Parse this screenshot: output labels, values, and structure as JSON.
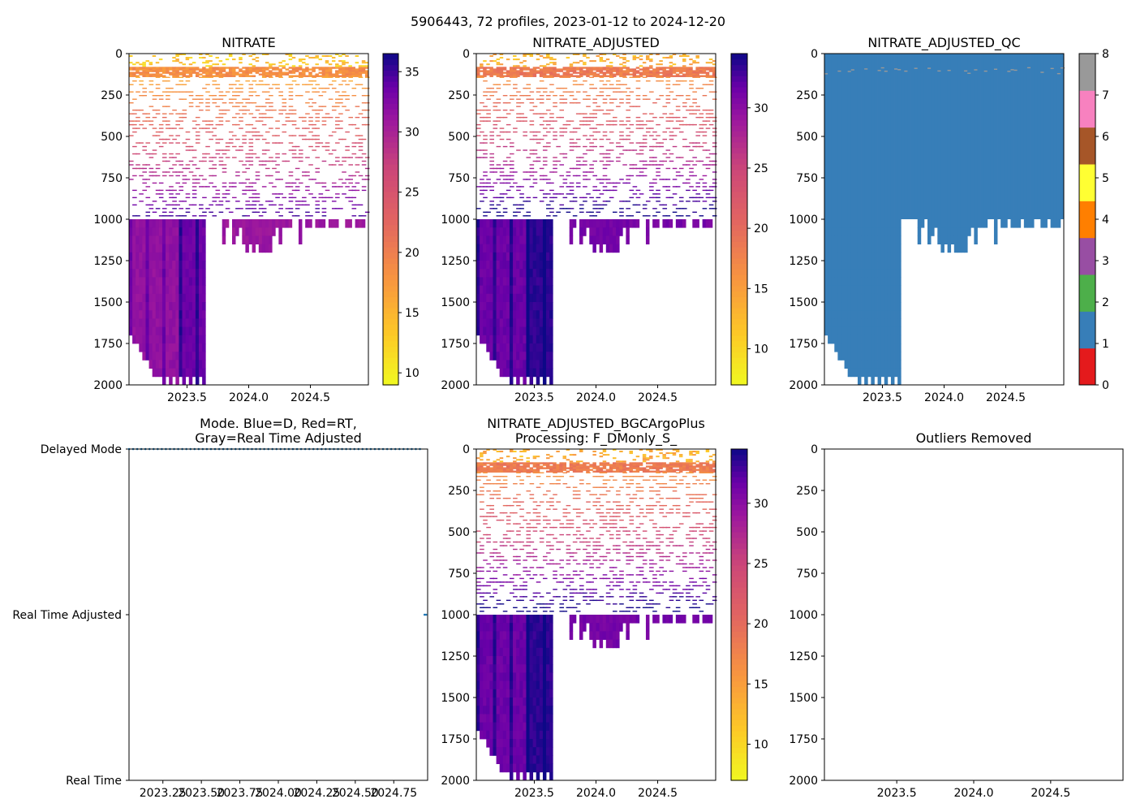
{
  "figure_title": "5906443, 72 profiles, 2023-01-12 to 2024-12-20",
  "chart_data": [
    {
      "type": "heatmap",
      "title": "NITRATE",
      "ylim": [
        2000,
        0
      ],
      "yticks": [
        0,
        250,
        500,
        750,
        1000,
        1250,
        1500,
        1750,
        2000
      ],
      "xlim": [
        2023.03,
        2024.97
      ],
      "xticks": [
        2023.5,
        2024.0,
        2024.5
      ],
      "xtick_labels": [
        "2023.5",
        "2024.0",
        "2024.5"
      ],
      "colormap": "plasma_r",
      "colorbar": {
        "range": [
          9,
          36.5
        ],
        "ticks": [
          10,
          15,
          20,
          25,
          30,
          35
        ]
      }
    },
    {
      "type": "heatmap",
      "title": "NITRATE_ADJUSTED",
      "ylim": [
        2000,
        0
      ],
      "yticks": [
        0,
        250,
        500,
        750,
        1000,
        1250,
        1500,
        1750,
        2000
      ],
      "xlim": [
        2023.03,
        2024.97
      ],
      "xticks": [
        2023.5,
        2024.0,
        2024.5
      ],
      "xtick_labels": [
        "2023.5",
        "2024.0",
        "2024.5"
      ],
      "colormap": "plasma_r",
      "colorbar": {
        "range": [
          7,
          34.5
        ],
        "ticks": [
          10,
          15,
          20,
          25,
          30
        ]
      }
    },
    {
      "type": "heatmap",
      "title": "NITRATE_ADJUSTED_QC",
      "ylim": [
        2000,
        0
      ],
      "yticks": [
        0,
        250,
        500,
        750,
        1000,
        1250,
        1500,
        1750,
        2000
      ],
      "xlim": [
        2023.03,
        2024.97
      ],
      "xticks": [
        2023.5,
        2024.0,
        2024.5
      ],
      "xtick_labels": [
        "2023.5",
        "2024.0",
        "2024.5"
      ],
      "dominant_flag": 1,
      "colorbar": {
        "range": [
          0,
          8
        ],
        "ticks": [
          0,
          1,
          2,
          3,
          4,
          5,
          6,
          7,
          8
        ],
        "colors": [
          "#e41a1c",
          "#377eb8",
          "#4daf4a",
          "#984ea3",
          "#ff7f00",
          "#ffff33",
          "#a65628",
          "#f781bf",
          "#999999"
        ]
      }
    },
    {
      "type": "scatter",
      "title": "Mode. Blue=D, Red=RT,\nGray=Real Time Adjusted",
      "title_lines": [
        "Mode. Blue=D, Red=RT,",
        "Gray=Real Time Adjusted"
      ],
      "ylim": [
        0,
        2
      ],
      "ytick_labels": [
        "Real Time",
        "Real Time Adjusted",
        "Delayed Mode"
      ],
      "xlim": [
        2023.03,
        2024.97
      ],
      "xticks": [
        2023.25,
        2023.5,
        2023.75,
        2024.0,
        2024.25,
        2024.5,
        2024.75
      ],
      "xtick_labels": [
        "2023.25",
        "2023.50",
        "2023.75",
        "2024.00",
        "2024.25",
        "2024.50",
        "2024.75"
      ],
      "series": [
        {
          "name": "Delayed Mode",
          "y": 2,
          "x_start": 2023.03,
          "x_end": 2024.92,
          "color": "#1f77b4"
        },
        {
          "name": "Real Time Adjusted",
          "y": 1,
          "x": [
            2024.95,
            2024.96
          ],
          "color": "#1f77b4"
        }
      ]
    },
    {
      "type": "heatmap",
      "title": "NITRATE_ADJUSTED_BGCArgoPlus\nProcessing: F_DMonly_S_",
      "title_lines": [
        "NITRATE_ADJUSTED_BGCArgoPlus",
        "Processing: F_DMonly_S_"
      ],
      "ylim": [
        2000,
        0
      ],
      "yticks": [
        0,
        250,
        500,
        750,
        1000,
        1250,
        1500,
        1750,
        2000
      ],
      "xlim": [
        2023.03,
        2024.97
      ],
      "xticks": [
        2023.5,
        2024.0,
        2024.5
      ],
      "xtick_labels": [
        "2023.5",
        "2024.0",
        "2024.5"
      ],
      "colormap": "plasma_r",
      "colorbar": {
        "range": [
          7,
          34.5
        ],
        "ticks": [
          10,
          15,
          20,
          25,
          30
        ]
      }
    },
    {
      "type": "scatter",
      "title": "Outliers Removed",
      "ylim": [
        2000,
        0
      ],
      "yticks": [
        0,
        250,
        500,
        750,
        1000,
        1250,
        1500,
        1750,
        2000
      ],
      "xlim": [
        2023.03,
        2024.97
      ],
      "xticks": [
        2023.5,
        2024.0,
        2024.5
      ],
      "xtick_labels": [
        "2023.5",
        "2024.0",
        "2024.5"
      ],
      "points": []
    }
  ]
}
